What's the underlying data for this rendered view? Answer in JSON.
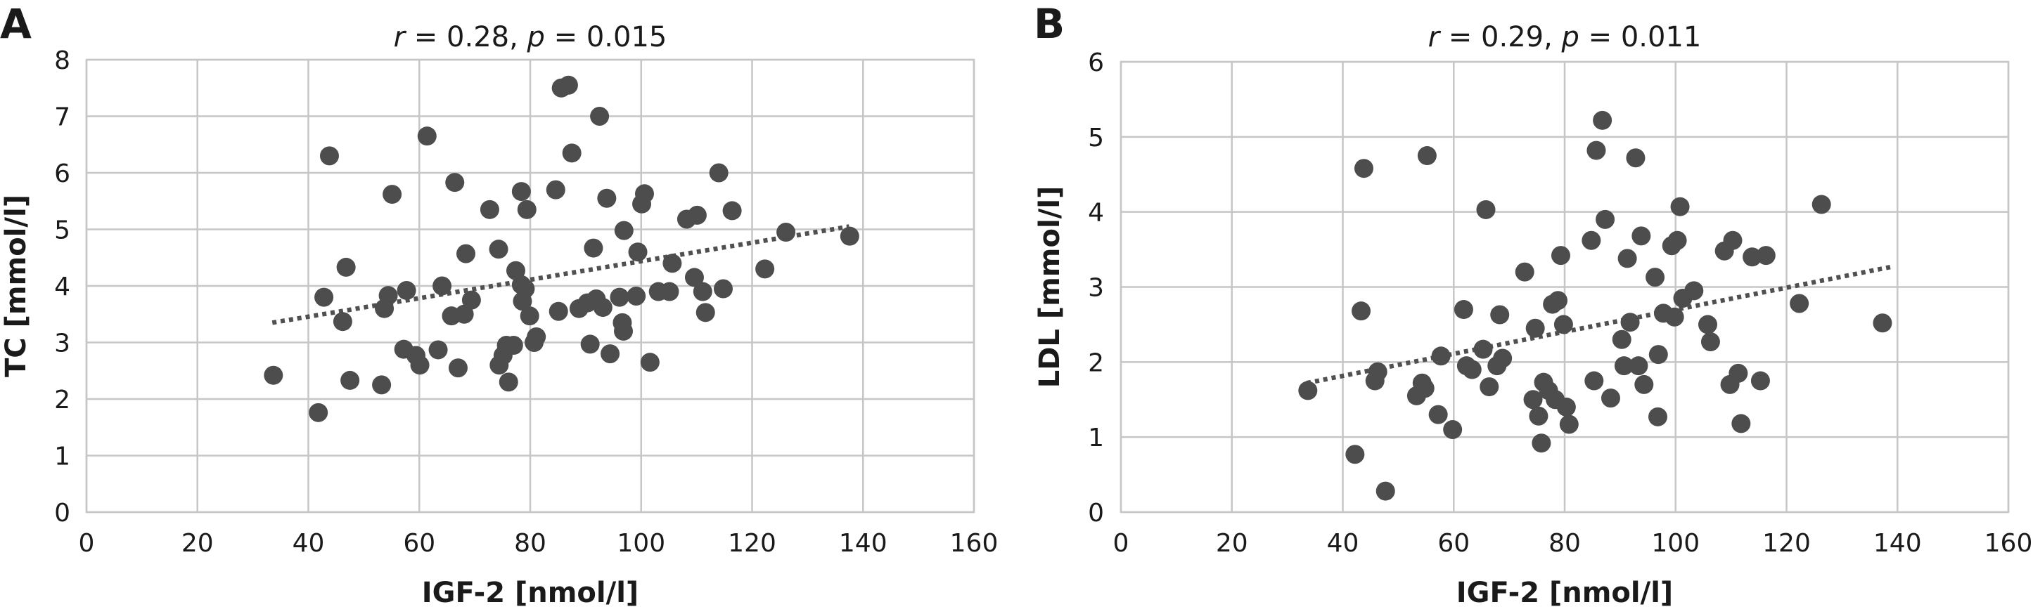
{
  "chart_data": [
    {
      "panel": "A",
      "type": "scatter",
      "subtitle": "r = 0.28, p = 0.015",
      "xlabel": "IGF-2 [nmol/l]",
      "ylabel": "TC [mmol/l]",
      "xlim": [
        0,
        160
      ],
      "ylim": [
        0,
        8
      ],
      "xticks": [
        0,
        20,
        40,
        60,
        80,
        100,
        120,
        140,
        160
      ],
      "yticks": [
        0,
        1,
        2,
        3,
        4,
        5,
        6,
        7,
        8
      ],
      "grid": true,
      "trendline": [
        [
          33.5,
          3.35
        ],
        [
          137.5,
          5.05
        ]
      ],
      "points": [
        [
          33.7,
          2.42
        ],
        [
          41.8,
          1.76
        ],
        [
          42.8,
          3.8
        ],
        [
          43.8,
          6.3
        ],
        [
          46.2,
          3.37
        ],
        [
          46.8,
          4.33
        ],
        [
          47.5,
          2.33
        ],
        [
          53.2,
          2.25
        ],
        [
          53.7,
          3.6
        ],
        [
          54.4,
          3.83
        ],
        [
          55.1,
          5.62
        ],
        [
          57.2,
          2.88
        ],
        [
          57.7,
          3.92
        ],
        [
          59.4,
          2.77
        ],
        [
          60.1,
          2.6
        ],
        [
          61.4,
          6.65
        ],
        [
          63.4,
          2.87
        ],
        [
          64.1,
          4.0
        ],
        [
          65.8,
          3.47
        ],
        [
          66.4,
          5.83
        ],
        [
          67.0,
          2.55
        ],
        [
          68.1,
          3.5
        ],
        [
          68.4,
          4.57
        ],
        [
          69.4,
          3.75
        ],
        [
          72.7,
          5.35
        ],
        [
          74.3,
          4.65
        ],
        [
          74.4,
          2.6
        ],
        [
          75.1,
          2.77
        ],
        [
          75.7,
          2.95
        ],
        [
          76.1,
          2.3
        ],
        [
          77.0,
          2.95
        ],
        [
          77.4,
          4.27
        ],
        [
          78.4,
          5.67
        ],
        [
          78.4,
          4.02
        ],
        [
          78.6,
          3.73
        ],
        [
          79.1,
          3.95
        ],
        [
          79.4,
          5.35
        ],
        [
          79.9,
          3.47
        ],
        [
          80.7,
          3.0
        ],
        [
          81.1,
          3.1
        ],
        [
          84.6,
          5.7
        ],
        [
          85.1,
          3.55
        ],
        [
          85.6,
          7.5
        ],
        [
          86.9,
          7.55
        ],
        [
          87.5,
          6.35
        ],
        [
          88.8,
          3.6
        ],
        [
          90.3,
          3.7
        ],
        [
          90.8,
          2.97
        ],
        [
          91.4,
          4.67
        ],
        [
          91.9,
          3.77
        ],
        [
          92.5,
          7.0
        ],
        [
          93.1,
          3.62
        ],
        [
          93.8,
          5.55
        ],
        [
          94.4,
          2.8
        ],
        [
          96.1,
          3.8
        ],
        [
          96.6,
          3.35
        ],
        [
          96.8,
          3.2
        ],
        [
          96.9,
          4.98
        ],
        [
          99.1,
          3.82
        ],
        [
          99.4,
          4.6
        ],
        [
          100.1,
          5.45
        ],
        [
          100.6,
          5.63
        ],
        [
          101.6,
          2.65
        ],
        [
          103.1,
          3.9
        ],
        [
          105.1,
          3.9
        ],
        [
          105.6,
          4.4
        ],
        [
          108.2,
          5.18
        ],
        [
          109.6,
          4.15
        ],
        [
          110.1,
          5.25
        ],
        [
          111.1,
          3.9
        ],
        [
          111.6,
          3.53
        ],
        [
          114.0,
          6.0
        ],
        [
          114.8,
          3.95
        ],
        [
          116.4,
          5.33
        ],
        [
          122.3,
          4.3
        ],
        [
          126.1,
          4.95
        ],
        [
          137.6,
          4.88
        ]
      ]
    },
    {
      "panel": "B",
      "type": "scatter",
      "subtitle": "r = 0.29, p = 0.011",
      "xlabel": "IGF-2 [nmol/l]",
      "ylabel": "LDL [mmol/l]",
      "xlim": [
        0,
        160
      ],
      "ylim": [
        0,
        6
      ],
      "xticks": [
        0,
        20,
        40,
        60,
        80,
        100,
        120,
        140,
        160
      ],
      "yticks": [
        0,
        1,
        2,
        3,
        4,
        5,
        6
      ],
      "grid": true,
      "trendline": [
        [
          33.5,
          1.72
        ],
        [
          139.0,
          3.27
        ]
      ],
      "points": [
        [
          33.7,
          1.62
        ],
        [
          42.2,
          0.77
        ],
        [
          43.3,
          2.68
        ],
        [
          43.8,
          4.58
        ],
        [
          45.8,
          1.75
        ],
        [
          46.3,
          1.87
        ],
        [
          47.7,
          0.28
        ],
        [
          53.3,
          1.55
        ],
        [
          54.3,
          1.72
        ],
        [
          54.8,
          1.65
        ],
        [
          55.2,
          4.75
        ],
        [
          57.2,
          1.3
        ],
        [
          57.7,
          2.08
        ],
        [
          59.8,
          1.1
        ],
        [
          61.8,
          2.7
        ],
        [
          62.3,
          1.95
        ],
        [
          63.3,
          1.9
        ],
        [
          65.3,
          2.17
        ],
        [
          65.8,
          4.03
        ],
        [
          66.4,
          1.67
        ],
        [
          67.8,
          1.95
        ],
        [
          68.3,
          2.63
        ],
        [
          68.8,
          2.05
        ],
        [
          72.8,
          3.2
        ],
        [
          74.3,
          1.5
        ],
        [
          74.7,
          2.45
        ],
        [
          75.3,
          1.28
        ],
        [
          75.8,
          0.92
        ],
        [
          76.2,
          1.73
        ],
        [
          77.1,
          1.62
        ],
        [
          77.8,
          2.77
        ],
        [
          78.3,
          1.5
        ],
        [
          78.8,
          2.82
        ],
        [
          79.3,
          3.42
        ],
        [
          79.8,
          2.5
        ],
        [
          80.3,
          1.4
        ],
        [
          80.8,
          1.17
        ],
        [
          84.8,
          3.62
        ],
        [
          85.3,
          1.75
        ],
        [
          85.7,
          4.82
        ],
        [
          86.8,
          5.22
        ],
        [
          87.3,
          3.9
        ],
        [
          88.3,
          1.52
        ],
        [
          90.3,
          2.3
        ],
        [
          90.7,
          1.95
        ],
        [
          91.3,
          3.38
        ],
        [
          91.8,
          2.53
        ],
        [
          92.8,
          4.72
        ],
        [
          93.3,
          1.95
        ],
        [
          93.8,
          3.68
        ],
        [
          94.3,
          1.7
        ],
        [
          96.3,
          3.13
        ],
        [
          96.8,
          1.27
        ],
        [
          96.9,
          2.1
        ],
        [
          97.8,
          2.65
        ],
        [
          99.3,
          3.55
        ],
        [
          99.8,
          2.6
        ],
        [
          100.3,
          3.62
        ],
        [
          100.8,
          4.07
        ],
        [
          101.3,
          2.85
        ],
        [
          103.3,
          2.95
        ],
        [
          105.8,
          2.5
        ],
        [
          106.3,
          2.27
        ],
        [
          108.8,
          3.48
        ],
        [
          109.8,
          1.7
        ],
        [
          110.3,
          3.62
        ],
        [
          111.3,
          1.85
        ],
        [
          111.8,
          1.18
        ],
        [
          113.8,
          3.4
        ],
        [
          115.3,
          1.75
        ],
        [
          116.3,
          3.42
        ],
        [
          122.3,
          2.78
        ],
        [
          126.3,
          4.1
        ],
        [
          137.3,
          2.52
        ]
      ]
    }
  ]
}
